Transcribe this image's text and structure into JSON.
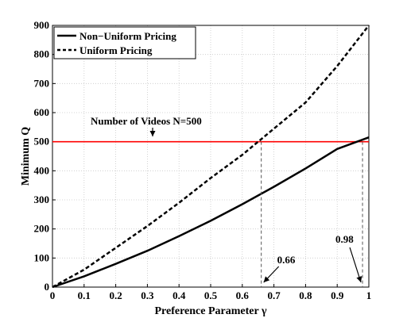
{
  "chart_data": {
    "type": "line",
    "title": "",
    "xlabel": "Preference Parameter γ",
    "ylabel": "Minimum Q",
    "xlim": [
      0,
      1
    ],
    "ylim": [
      0,
      900
    ],
    "xticks": [
      0,
      0.1,
      0.2,
      0.3,
      0.4,
      0.5,
      0.6,
      0.7,
      0.8,
      0.9,
      1
    ],
    "yticks": [
      0,
      100,
      200,
      300,
      400,
      500,
      600,
      700,
      800,
      900
    ],
    "grid": true,
    "legend_position": "top-left",
    "series": [
      {
        "name": "Non−Uniform Pricing",
        "style": "solid",
        "color": "#000000",
        "x": [
          0,
          0.1,
          0.2,
          0.3,
          0.4,
          0.5,
          0.6,
          0.7,
          0.8,
          0.9,
          1.0
        ],
        "y": [
          0,
          37,
          80,
          125,
          175,
          228,
          285,
          345,
          408,
          475,
          515
        ]
      },
      {
        "name": "Uniform Pricing",
        "style": "dashed",
        "color": "#000000",
        "x": [
          0,
          0.1,
          0.2,
          0.3,
          0.4,
          0.5,
          0.6,
          0.7,
          0.8,
          0.9,
          1.0
        ],
        "y": [
          0,
          60,
          135,
          210,
          290,
          375,
          455,
          545,
          635,
          760,
          900
        ]
      }
    ],
    "reference_line": {
      "y": 500,
      "color": "#ff0000",
      "label": "Number of Videos N=500"
    },
    "annotations": [
      {
        "label": "0.66",
        "x": 0.66
      },
      {
        "label": "0.98",
        "x": 0.98
      }
    ]
  }
}
